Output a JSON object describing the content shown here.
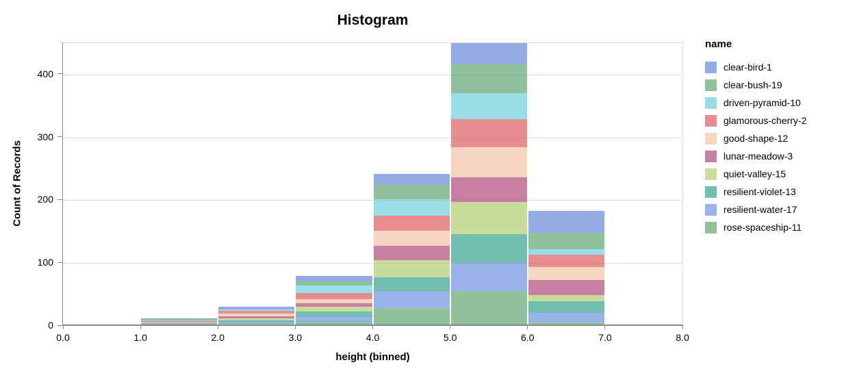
{
  "header": {
    "title": "Histogram"
  },
  "chart_data": {
    "type": "bar",
    "subtype": "stacked-histogram",
    "title": "Histogram",
    "xlabel": "height (binned)",
    "ylabel": "Count of Records",
    "xlim": [
      0,
      8
    ],
    "ylim": [
      0,
      450
    ],
    "x_ticks": [
      "0.0",
      "1.0",
      "2.0",
      "3.0",
      "4.0",
      "5.0",
      "6.0",
      "7.0",
      "8.0"
    ],
    "y_ticks": [
      0,
      100,
      200,
      300,
      400
    ],
    "grid": true,
    "grid_color": "#dddddd",
    "axis_color": "#888888",
    "fill_opacity": 0.7,
    "legend_title": "name",
    "legend_position": "right",
    "stack_order": "first-series-on-top",
    "bin_edges": [
      0,
      1,
      2,
      3,
      4,
      5,
      6,
      7,
      8
    ],
    "bin_totals": [
      1,
      12,
      31,
      80,
      242,
      456,
      183,
      2
    ],
    "series": [
      {
        "name": "clear-bird-1",
        "color": "#658ad8",
        "values": [
          0,
          1,
          5,
          9,
          17,
          40,
          35,
          1
        ]
      },
      {
        "name": "clear-bush-19",
        "color": "#5fa670",
        "values": [
          0,
          2,
          0,
          7,
          23,
          45,
          26,
          0
        ]
      },
      {
        "name": "driven-pyramid-10",
        "color": "#6ecede",
        "values": [
          0,
          1,
          2,
          12,
          27,
          42,
          9,
          0
        ]
      },
      {
        "name": "glamorous-cherry-2",
        "color": "#de5c60",
        "values": [
          0,
          2,
          4,
          10,
          24,
          45,
          19,
          0
        ]
      },
      {
        "name": "good-shape-12",
        "color": "#f1c3a5",
        "values": [
          0,
          2,
          5,
          6,
          23,
          47,
          21,
          0
        ]
      },
      {
        "name": "lunar-meadow-3",
        "color": "#af487e",
        "values": [
          0,
          0,
          3,
          6,
          23,
          40,
          24,
          0
        ]
      },
      {
        "name": "quiet-valley-15",
        "color": "#b0ce70",
        "values": [
          1,
          0,
          3,
          7,
          28,
          51,
          10,
          0
        ]
      },
      {
        "name": "resilient-violet-13",
        "color": "#36a491",
        "values": [
          0,
          2,
          3,
          9,
          22,
          46,
          18,
          0
        ]
      },
      {
        "name": "resilient-water-17",
        "color": "#6f92e1",
        "values": [
          0,
          1,
          3,
          7,
          27,
          44,
          16,
          1
        ]
      },
      {
        "name": "rose-spaceship-11",
        "color": "#60a870",
        "values": [
          0,
          1,
          3,
          7,
          28,
          56,
          5,
          0
        ]
      }
    ]
  }
}
